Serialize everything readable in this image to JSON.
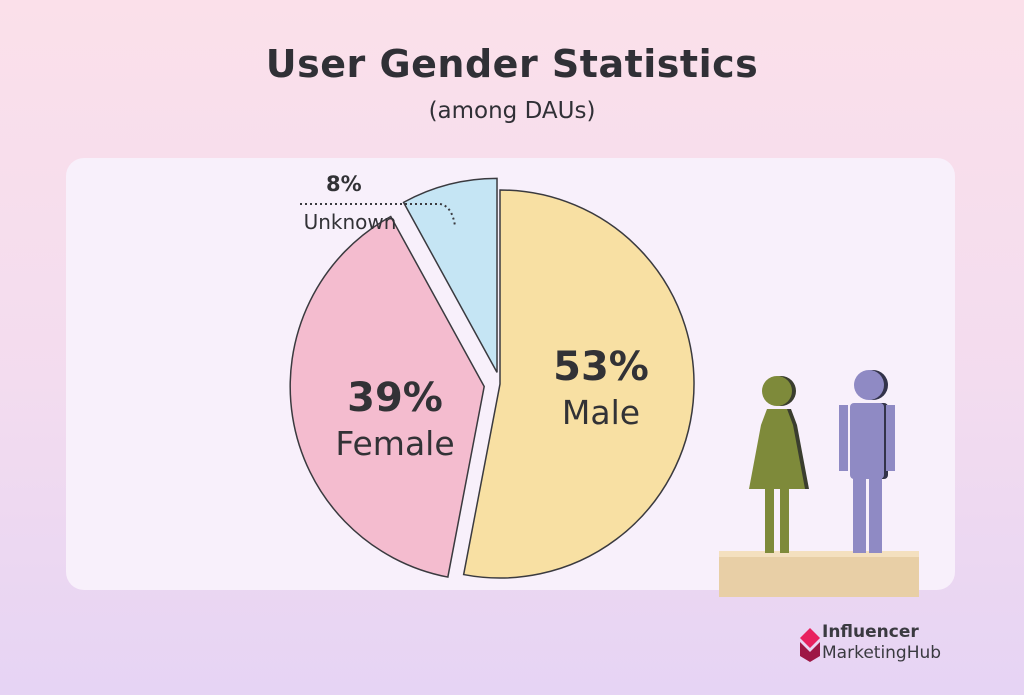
{
  "header": {
    "title": "User Gender Statistics",
    "subtitle": "(among DAUs)"
  },
  "chart_data": {
    "type": "pie",
    "title": "User Gender Statistics",
    "subtitle": "(among DAUs)",
    "slices": [
      {
        "label": "Male",
        "value": 53,
        "display": "53%",
        "color": "#f8e0a3"
      },
      {
        "label": "Female",
        "value": 39,
        "display": "39%",
        "color": "#f4bccf"
      },
      {
        "label": "Unknown",
        "value": 8,
        "display": "8%",
        "color": "#c5e5f4"
      }
    ]
  },
  "illustration": {
    "female_figure_color": "#7e8a3a",
    "male_figure_color": "#8f8ac4",
    "base_color": "#e8cfa6"
  },
  "brand": {
    "line1": "Influencer",
    "line2": "MarketingHub",
    "icon": "influencer-marketing-hub-logo",
    "color": "#e8215f"
  }
}
